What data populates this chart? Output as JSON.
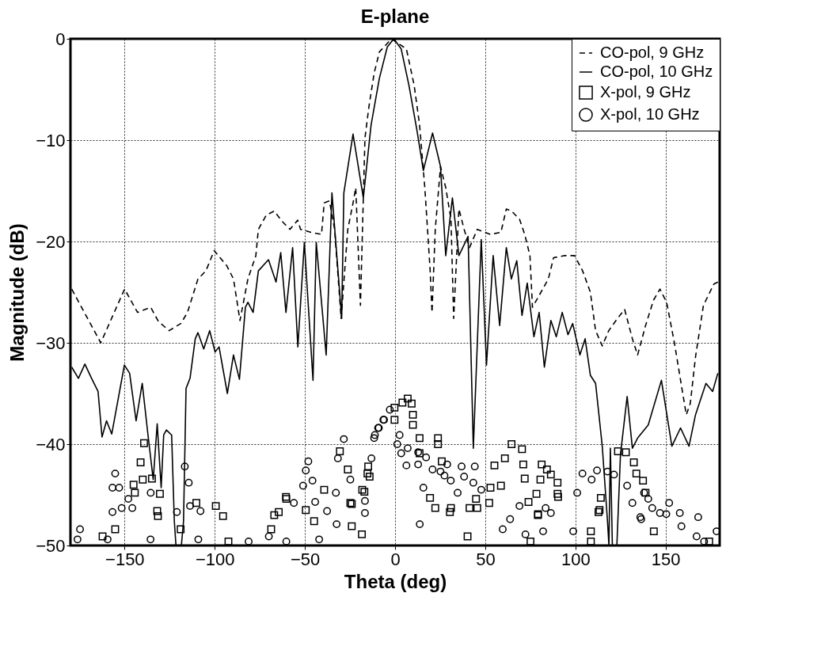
{
  "chart_data": {
    "type": "line",
    "title": "E-plane",
    "xlabel": "Theta (deg)",
    "ylabel": "Magnitude (dB)",
    "xlim": [
      -180,
      180
    ],
    "ylim": [
      -50,
      0
    ],
    "xticks": [
      -150,
      -100,
      -50,
      0,
      50,
      100,
      150
    ],
    "yticks": [
      -50,
      -40,
      -30,
      -20,
      -10,
      0
    ],
    "grid": true,
    "legend": "top right",
    "series": [
      {
        "name": "CO-pol, 9 GHz",
        "type": "line",
        "line_style": "dashed",
        "color": "#000000",
        "x": [
          -179.3,
          -163.2,
          -150,
          -142.8,
          -135.5,
          -131.2,
          -125.3,
          -118.8,
          -115.1,
          -109.3,
          -104.9,
          -100.3,
          -93.3,
          -89.6,
          -86,
          -81.6,
          -77.2,
          -75.8,
          -71.4,
          -67,
          -62.7,
          -58.3,
          -54,
          -52.4,
          -46.6,
          -40.8,
          -39.3,
          -36.4,
          -33.5,
          -29.9,
          -26.2,
          -23.3,
          -21.8,
          -19.2,
          -16.7,
          -14.5,
          -11.6,
          -8.7,
          -2,
          6.3,
          10.6,
          13.6,
          16.5,
          18,
          19.4,
          20.5,
          22.3,
          25.2,
          28.1,
          31,
          32.5,
          35.4,
          38.3,
          41.3,
          45.6,
          52.9,
          58.7,
          61.7,
          64.6,
          69,
          71.9,
          74.8,
          76.2,
          85,
          87.9,
          93.7,
          99.6,
          104,
          108.3,
          111.2,
          114.9,
          118.5,
          122.9,
          127.3,
          131.6,
          134.5,
          138.9,
          143.3,
          146.9,
          150.6,
          155,
          158.6,
          161.5,
          163.7,
          166.6,
          171,
          176.8,
          179
        ],
        "values": [
          -24.7,
          -30,
          -24.7,
          -27,
          -26.5,
          -27.9,
          -28.8,
          -28.1,
          -27,
          -23.7,
          -22.9,
          -20.9,
          -22.4,
          -23.7,
          -27.8,
          -23.7,
          -21.4,
          -18.8,
          -17.4,
          -17,
          -18,
          -18.8,
          -17.9,
          -18.8,
          -19.1,
          -19.3,
          -16.2,
          -16,
          -18.8,
          -27.6,
          -18.8,
          -16.2,
          -14.7,
          -26.3,
          -9.8,
          -6.7,
          -3.4,
          -1.3,
          0,
          -1,
          -4.6,
          -8.5,
          -14.7,
          -18.8,
          -22.7,
          -27,
          -18.8,
          -12.6,
          -14.7,
          -17.8,
          -27.6,
          -16.8,
          -18.8,
          -20.6,
          -18.8,
          -19.3,
          -19.1,
          -16.8,
          -17,
          -17.8,
          -19.3,
          -21.4,
          -26.5,
          -23.7,
          -21.6,
          -21.4,
          -21.4,
          -22.9,
          -25,
          -28.8,
          -30.3,
          -28.8,
          -27.7,
          -26.7,
          -29.6,
          -31.2,
          -28.3,
          -25.8,
          -24.7,
          -26,
          -30.1,
          -34,
          -37.1,
          -36,
          -31.4,
          -26.3,
          -24.2,
          -24
        ]
      },
      {
        "name": "CO-pol, 10 GHz",
        "type": "line",
        "line_style": "solid",
        "color": "#000000",
        "x": [
          -179.3,
          -175.6,
          -172,
          -168.3,
          -164.7,
          -162.5,
          -160,
          -157.1,
          -150.1,
          -147.2,
          -143.6,
          -140.2,
          -137,
          -134.1,
          -131.9,
          -129.7,
          -128.3,
          -126.8,
          -123.9,
          -122.4,
          -121.5,
          -118.5,
          -117.3,
          -115.9,
          -113.7,
          -110.8,
          -109.3,
          -106.1,
          -102.8,
          -99.8,
          -97.6,
          -93,
          -89.6,
          -86.3,
          -83,
          -81.6,
          -78.7,
          -75.8,
          -70.2,
          -66,
          -63.4,
          -60.5,
          -56.8,
          -53.9,
          -50.3,
          -45.5,
          -43.7,
          -38.2,
          -35,
          -29.6,
          -28.4,
          -23.3,
          -17.6,
          -13.3,
          -8.7,
          -4.3,
          -0.7,
          3.4,
          7.7,
          12.1,
          15.7,
          20.8,
          25.2,
          28.1,
          31.8,
          35.4,
          40.5,
          43.4,
          47.8,
          50.7,
          54.4,
          58,
          61.7,
          64.5,
          67.5,
          70.4,
          73.3,
          77,
          79.9,
          82.8,
          86.4,
          89.4,
          92.7,
          95.9,
          98.5,
          102.5,
          105.4,
          108.3,
          111.2,
          114.9,
          117.8,
          118.6,
          119.4,
          120.5,
          123,
          125,
          128.7,
          131.6,
          134.5,
          140.4,
          147.7,
          153.5,
          158.3,
          163,
          166.6,
          172.4,
          176.1,
          179
        ],
        "values": [
          -32.4,
          -33.5,
          -32.1,
          -33.5,
          -34.8,
          -39.3,
          -37.7,
          -39,
          -32.2,
          -33,
          -37.7,
          -34,
          -39.1,
          -43.5,
          -38,
          -44.3,
          -39.1,
          -38.6,
          -39.1,
          -47.6,
          -50,
          -50,
          -47.6,
          -34.5,
          -33.5,
          -29.6,
          -29,
          -30.6,
          -28.8,
          -30.9,
          -30.4,
          -35,
          -31.2,
          -33.6,
          -26.5,
          -26,
          -27,
          -22.9,
          -21.8,
          -24,
          -21.1,
          -27,
          -20.6,
          -30.4,
          -20.1,
          -33.7,
          -20.1,
          -31.2,
          -15.2,
          -27.6,
          -15.2,
          -9.4,
          -15.7,
          -8.5,
          -3.9,
          -0.8,
          0,
          -1,
          -4.6,
          -9,
          -13,
          -9.3,
          -12.6,
          -21.4,
          -15.7,
          -21.4,
          -19.5,
          -40.4,
          -19.8,
          -32.2,
          -21.4,
          -28.3,
          -20.6,
          -23.7,
          -21.9,
          -27.3,
          -24.1,
          -29.4,
          -27,
          -32.4,
          -27.8,
          -29.4,
          -27,
          -29.2,
          -28.1,
          -31.2,
          -29.6,
          -33.2,
          -34,
          -40.2,
          -47.6,
          -50,
          -40.4,
          -50,
          -50,
          -41,
          -35.3,
          -40.4,
          -39.4,
          -38.1,
          -33.7,
          -40.2,
          -38.4,
          -40.2,
          -37.1,
          -34,
          -34.8,
          -33
        ]
      },
      {
        "name": "X-pol, 9 GHz",
        "type": "scatter",
        "marker": "square",
        "color": "#000000",
        "x": [
          -162.2,
          -155.2,
          -145,
          -144.3,
          -141.1,
          -139.9,
          -139.2,
          -134.8,
          -131.9,
          -131.5,
          -130.4,
          -118.9,
          -110.2,
          -99.4,
          -95.4,
          -92.4,
          -68.7,
          -67,
          -64.5,
          -60.5,
          -60.3,
          -49.5,
          -44.9,
          -39.3,
          -30.6,
          -26.2,
          -24.8,
          -24,
          -24,
          -18.4,
          -18.2,
          -17,
          -15.3,
          -14.9,
          -14.1,
          -0.3,
          -0.3,
          4.1,
          7,
          9.2,
          9.9,
          9.9,
          13.6,
          13.6,
          19.4,
          22.3,
          23.8,
          23.8,
          25.9,
          30.4,
          31,
          40.2,
          41.3,
          44.9,
          45.6,
          52.2,
          52.9,
          55.1,
          58.7,
          60.9,
          64.6,
          70.4,
          71.1,
          71.9,
          74,
          75.1,
          78.4,
          79.2,
          79.3,
          80.6,
          81.3,
          84.2,
          86.4,
          90.1,
          90.1,
          90.4,
          108.6,
          108.6,
          112.8,
          113.4,
          114.1,
          123.6,
          128,
          132.4,
          133.8,
          137.5,
          138.9,
          143.5,
          174.2
        ],
        "values": [
          -49.1,
          -48.4,
          -44,
          -44.8,
          -41.8,
          -43.5,
          -39.9,
          -43.4,
          -46.6,
          -47.1,
          -44.9,
          -48.4,
          -45.8,
          -46.1,
          -47.1,
          -49.6,
          -48.4,
          -47,
          -46.7,
          -45.2,
          -45.4,
          -46.5,
          -47.6,
          -44.5,
          -40.7,
          -42.5,
          -45.8,
          -45.9,
          -48.1,
          -48.9,
          -44.5,
          -44.7,
          -42.9,
          -42.2,
          -43.2,
          -36.4,
          -37.6,
          -35.9,
          -35.5,
          -36,
          -37.1,
          -38.1,
          -39.4,
          -40.9,
          -45.3,
          -46.3,
          -39.4,
          -40,
          -41.7,
          -46.7,
          -46.3,
          -49.1,
          -46.3,
          -45.4,
          -46.3,
          -45.8,
          -44.3,
          -42.1,
          -44.1,
          -41.4,
          -40,
          -40.5,
          -42,
          -43.4,
          -45.7,
          -49.6,
          -44.9,
          -47,
          -46.9,
          -43.5,
          -42,
          -42.5,
          -43,
          -43.8,
          -44.9,
          -45.2,
          -48.6,
          -49.6,
          -46.7,
          -46.5,
          -45.3,
          -40.7,
          -40.8,
          -41.8,
          -42.9,
          -43.6,
          -44.8,
          -48.6,
          -49.6
        ]
      },
      {
        "name": "X-pol, 10 GHz",
        "type": "scatter",
        "marker": "circle",
        "color": "#000000",
        "x": [
          -176.1,
          -174.7,
          -159.4,
          -156.7,
          -156.7,
          -155.2,
          -153,
          -151.6,
          -147.9,
          -145.7,
          -135.6,
          -135.5,
          -121,
          -116.6,
          -114.4,
          -113.7,
          -109.1,
          -107.9,
          -81.2,
          -70,
          -60.3,
          -56.1,
          -51,
          -49.5,
          -48.1,
          -45.8,
          -44.3,
          -42.1,
          -37.7,
          -32.8,
          -32.4,
          -31.7,
          -28.4,
          -24.8,
          -16.7,
          -16.7,
          -13.1,
          -11.6,
          -11.2,
          -9.4,
          -9,
          -6.5,
          -6.1,
          -2.9,
          1.2,
          2.5,
          3.4,
          6.3,
          7,
          12.8,
          12.8,
          13.7,
          15.7,
          17.2,
          20.8,
          25.2,
          27.4,
          28.9,
          30.9,
          34.7,
          36.9,
          38.3,
          43.4,
          44.2,
          47.8,
          59.7,
          63.8,
          69,
          72.3,
          82.1,
          83.5,
          86.4,
          98.8,
          101,
          103.9,
          109,
          112,
          117.8,
          121.4,
          128.7,
          131.6,
          136,
          136.5,
          138.1,
          140.4,
          142.6,
          146.9,
          150.4,
          152,
          157.9,
          158.8,
          167.2,
          168.1,
          171.4,
          178.3
        ],
        "values": [
          -49.4,
          -48.4,
          -49.4,
          -44.3,
          -46.7,
          -42.9,
          -44.3,
          -46.3,
          -45.4,
          -46.3,
          -49.4,
          -44.8,
          -46.7,
          -42.2,
          -43.8,
          -46.1,
          -49.4,
          -46.6,
          -49.6,
          -49.1,
          -49.6,
          -45.8,
          -44.1,
          -42.6,
          -41.7,
          -43.6,
          -45.7,
          -49.4,
          -46.6,
          -44.8,
          -47.9,
          -41.4,
          -39.5,
          -43.5,
          -45.6,
          -46.8,
          -41.4,
          -39.4,
          -39.1,
          -38.4,
          -38.4,
          -37.6,
          -37.6,
          -36.6,
          -40,
          -39.1,
          -40.9,
          -42.1,
          -40.4,
          -42,
          -40.8,
          -47.9,
          -44.3,
          -41.3,
          -42.5,
          -42.7,
          -43.1,
          -42,
          -43.6,
          -44.8,
          -42.2,
          -43.2,
          -43.8,
          -42.2,
          -44.5,
          -48.4,
          -47.4,
          -46.1,
          -48.9,
          -48.6,
          -46.3,
          -46.8,
          -48.6,
          -44.8,
          -42.9,
          -43.5,
          -42.6,
          -42.7,
          -43,
          -44.1,
          -45.8,
          -47.2,
          -47.4,
          -44.8,
          -45.4,
          -46.3,
          -46.8,
          -46.9,
          -45.8,
          -46.8,
          -48.1,
          -49.1,
          -47.2,
          -49.6,
          -48.6
        ]
      }
    ]
  }
}
